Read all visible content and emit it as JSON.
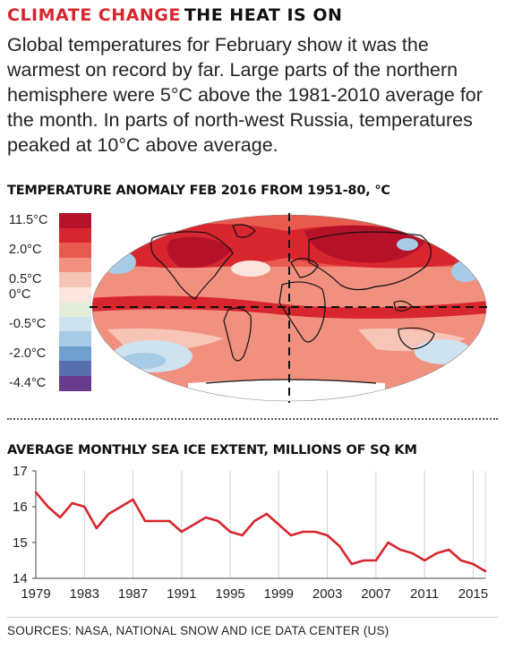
{
  "header": {
    "kicker": "CLIMATE CHANGE",
    "title": "THE HEAT IS ON"
  },
  "intro": "Global temperatures for February show it was the warmest on record by far. Large parts of the northern hemisphere were 5°C above the 1981-2010 average for the month. In parts of north-west Russia, temperatures peaked at 10°C above average.",
  "map": {
    "title": "TEMPERATURE ANOMALY FEB 2016 FROM 1951-80, °C",
    "legend": [
      {
        "label": "11.5°C",
        "color": "#b5122a"
      },
      {
        "label": "",
        "color": "#d8262e"
      },
      {
        "label": "2.0°C",
        "color": "#e95a4e"
      },
      {
        "label": "",
        "color": "#f2907f"
      },
      {
        "label": "0.5°C",
        "color": "#f7c4b8"
      },
      {
        "label": "0°C",
        "color": "#fbe6df"
      },
      {
        "label": "",
        "color": "#e4ecda"
      },
      {
        "label": "-0.5°C",
        "color": "#cfe2ef"
      },
      {
        "label": "",
        "color": "#a6cbe6"
      },
      {
        "label": "-2.0°C",
        "color": "#6e9fcf"
      },
      {
        "label": "",
        "color": "#5a6fb0"
      },
      {
        "label": "-4.4°C",
        "color": "#6a3a8c"
      }
    ]
  },
  "chart_data": {
    "type": "line",
    "title": "AVERAGE MONTHLY SEA ICE EXTENT, MILLIONS OF SQ KM",
    "xlabel": "",
    "ylabel": "",
    "x": [
      1979,
      1980,
      1981,
      1982,
      1983,
      1984,
      1985,
      1986,
      1987,
      1988,
      1989,
      1990,
      1991,
      1992,
      1993,
      1994,
      1995,
      1996,
      1997,
      1998,
      1999,
      2000,
      2001,
      2002,
      2003,
      2004,
      2005,
      2006,
      2007,
      2008,
      2009,
      2010,
      2011,
      2012,
      2013,
      2014,
      2015,
      2016
    ],
    "series": [
      {
        "values": [
          16.4,
          16.0,
          15.7,
          16.1,
          16.0,
          15.4,
          15.8,
          16.0,
          16.2,
          15.6,
          15.6,
          15.6,
          15.3,
          15.5,
          15.7,
          15.6,
          15.3,
          15.2,
          15.6,
          15.8,
          15.5,
          15.2,
          15.3,
          15.3,
          15.2,
          14.9,
          14.4,
          14.5,
          14.5,
          15.0,
          14.8,
          14.7,
          14.5,
          14.7,
          14.8,
          14.5,
          14.4,
          14.2
        ]
      }
    ],
    "xticks": [
      "1979",
      "1983",
      "1987",
      "1991",
      "1995",
      "1999",
      "2003",
      "2007",
      "2011",
      "2015"
    ],
    "yticks": [
      "17",
      "16",
      "15",
      "14"
    ],
    "xlim": [
      1979,
      2016
    ],
    "ylim": [
      14,
      17
    ],
    "grid": "vertical",
    "line_color": "#d7262e"
  },
  "footer": {
    "sources": "SOURCES: NASA, NATIONAL SNOW AND ICE DATA CENTER (US)"
  }
}
